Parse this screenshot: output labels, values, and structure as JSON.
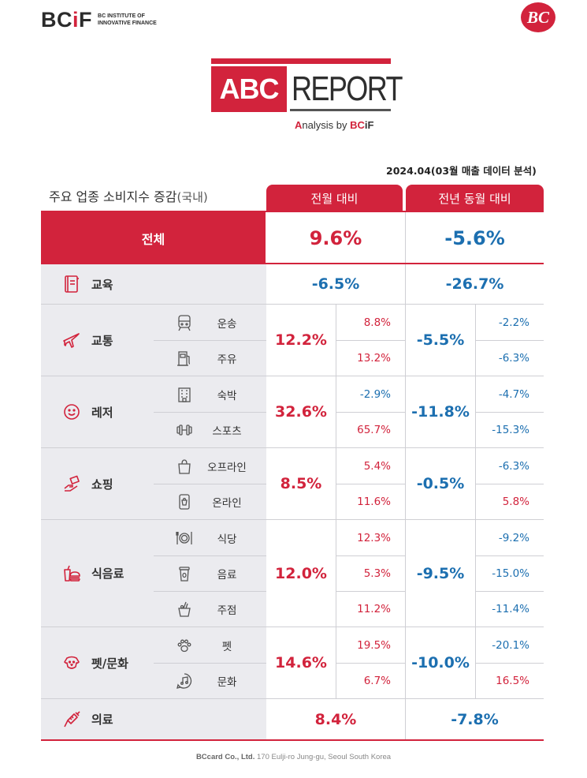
{
  "header": {
    "bcif_logo": "BCiF",
    "bcif_subtitle": "BC INSTITUTE OF INNOVATIVE FINANCE",
    "bc_badge": "BC",
    "abc": "ABC",
    "report": "REPORT",
    "analysis_a": "A",
    "analysis_rest": "nalysis by ",
    "analysis_bc": "BC",
    "analysis_if": "iF"
  },
  "period": "2024.04(03월 매출 데이터 분석)",
  "table": {
    "title": "주요 업종 소비지수 증감",
    "title_suffix": "(국내)",
    "col_mom": "전월 대비",
    "col_yoy": "전년 동월 대비",
    "total": {
      "label": "전체",
      "mom": "9.6%",
      "yoy": "-5.6%"
    },
    "education": {
      "label": "교육",
      "icon": "book-icon",
      "mom": "-6.5%",
      "yoy": "-26.7%"
    },
    "transport": {
      "label": "교통",
      "icon": "airplane-icon",
      "mom": "12.2%",
      "yoy": "-5.5%",
      "subs": [
        {
          "label": "운송",
          "icon": "train-icon",
          "mom": "8.8%",
          "yoy": "-2.2%"
        },
        {
          "label": "주유",
          "icon": "fuel-pump-icon",
          "mom": "13.2%",
          "yoy": "-6.3%"
        }
      ]
    },
    "leisure": {
      "label": "레저",
      "icon": "smile-icon",
      "mom": "32.6%",
      "yoy": "-11.8%",
      "subs": [
        {
          "label": "숙박",
          "icon": "building-icon",
          "mom": "-2.9%",
          "yoy": "-4.7%"
        },
        {
          "label": "스포츠",
          "icon": "dumbbell-icon",
          "mom": "65.7%",
          "yoy": "-15.3%"
        }
      ]
    },
    "shopping": {
      "label": "쇼핑",
      "icon": "payment-hand-icon",
      "mom": "8.5%",
      "yoy": "-0.5%",
      "subs": [
        {
          "label": "오프라인",
          "icon": "shopping-bag-icon",
          "mom": "5.4%",
          "yoy": "-6.3%"
        },
        {
          "label": "온라인",
          "icon": "mobile-shop-icon",
          "mom": "11.6%",
          "yoy": "5.8%"
        }
      ]
    },
    "food": {
      "label": "식음료",
      "icon": "burger-drink-icon",
      "mom": "12.0%",
      "yoy": "-9.5%",
      "subs": [
        {
          "label": "식당",
          "icon": "plate-cutlery-icon",
          "mom": "12.3%",
          "yoy": "-9.2%"
        },
        {
          "label": "음료",
          "icon": "coffee-cup-icon",
          "mom": "5.3%",
          "yoy": "-15.0%"
        },
        {
          "label": "주점",
          "icon": "ice-bucket-icon",
          "mom": "11.2%",
          "yoy": "-11.4%"
        }
      ]
    },
    "pet_culture": {
      "label": "펫/문화",
      "icon": "dog-icon",
      "mom": "14.6%",
      "yoy": "-10.0%",
      "subs": [
        {
          "label": "펫",
          "icon": "paw-icon",
          "mom": "19.5%",
          "yoy": "-20.1%"
        },
        {
          "label": "문화",
          "icon": "music-icon",
          "mom": "6.7%",
          "yoy": "16.5%"
        }
      ]
    },
    "medical": {
      "label": "의료",
      "icon": "syringe-icon",
      "mom": "8.4%",
      "yoy": "-7.8%"
    }
  },
  "footer": {
    "company": "BCcard Co., Ltd.",
    "address": "170 Eulji-ro Jung-gu, Seoul South Korea"
  },
  "colors": {
    "accent": "#d2233c",
    "negative": "#1c6fb0",
    "row_bg": "#ebebef"
  }
}
